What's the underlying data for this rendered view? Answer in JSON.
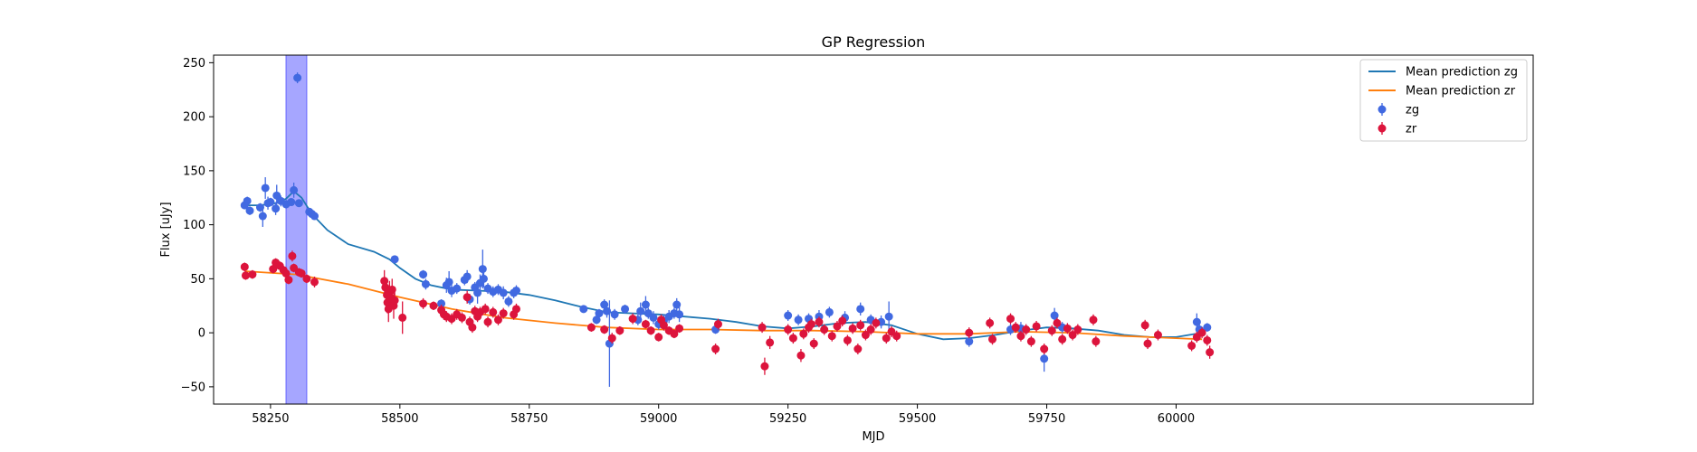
{
  "chart_data": {
    "type": "scatter",
    "title": "GP Regression",
    "xlabel": "MJD",
    "ylabel": "Flux [uJy]",
    "xlim": [
      58140,
      60690
    ],
    "ylim": [
      -66,
      257
    ],
    "xticks": [
      58250,
      58500,
      58750,
      59000,
      59250,
      59500,
      59750,
      60000
    ],
    "yticks": [
      -50,
      0,
      50,
      100,
      150,
      200,
      250
    ],
    "grid": false,
    "legend_position": "top-right",
    "highlight_span": {
      "x0": 58280,
      "x1": 58320,
      "color": "#a6a6ff"
    },
    "series": [
      {
        "name": "Mean prediction zg",
        "kind": "line",
        "color": "#1f77b4",
        "x": [
          58200,
          58230,
          58260,
          58280,
          58295,
          58310,
          58330,
          58360,
          58400,
          58450,
          58480,
          58500,
          58530,
          58560,
          58600,
          58650,
          58700,
          58750,
          58800,
          58850,
          58900,
          58950,
          59000,
          59050,
          59100,
          59150,
          59200,
          59250,
          59300,
          59350,
          59400,
          59450,
          59500,
          59550,
          59600,
          59650,
          59700,
          59750,
          59800,
          59850,
          59900,
          59950,
          60000,
          60050
        ],
        "y": [
          118,
          118,
          120,
          124,
          131,
          125,
          110,
          95,
          82,
          75,
          68,
          60,
          50,
          44,
          40,
          39,
          38,
          35,
          30,
          24,
          19,
          18,
          17,
          15,
          13,
          10,
          6,
          4,
          6,
          9,
          10,
          7,
          -1,
          -6,
          -5,
          -2,
          2,
          5,
          4,
          2,
          -2,
          -4,
          -4,
          0
        ]
      },
      {
        "name": "Mean prediction zr",
        "kind": "line",
        "color": "#ff7f0e",
        "x": [
          58200,
          58300,
          58400,
          58500,
          58600,
          58700,
          58800,
          58900,
          59000,
          59100,
          59200,
          59300,
          59400,
          59500,
          59600,
          59700,
          59800,
          59900,
          60000,
          60050
        ],
        "y": [
          57,
          54,
          45,
          33,
          22,
          14,
          9,
          5,
          3,
          3,
          2,
          2,
          1,
          -1,
          -1,
          1,
          0,
          -3,
          -5,
          -6
        ]
      },
      {
        "name": "zg",
        "kind": "errorbar",
        "color": "#4169e1",
        "points": [
          [
            58200,
            118,
            3
          ],
          [
            58205,
            122,
            4
          ],
          [
            58210,
            113,
            4
          ],
          [
            58230,
            116,
            4
          ],
          [
            58235,
            108,
            10
          ],
          [
            58240,
            134,
            10
          ],
          [
            58245,
            120,
            6
          ],
          [
            58250,
            121,
            4
          ],
          [
            58260,
            115,
            6
          ],
          [
            58262,
            127,
            10
          ],
          [
            58270,
            122,
            5
          ],
          [
            58280,
            119,
            4
          ],
          [
            58290,
            121,
            3
          ],
          [
            58295,
            132,
            7
          ],
          [
            58302,
            236,
            5
          ],
          [
            58305,
            120,
            3
          ],
          [
            58325,
            112,
            3
          ],
          [
            58330,
            110,
            3
          ],
          [
            58335,
            108,
            3
          ],
          [
            58490,
            68,
            3
          ],
          [
            58545,
            54,
            4
          ],
          [
            58550,
            45,
            5
          ],
          [
            58580,
            27,
            4
          ],
          [
            58590,
            44,
            7
          ],
          [
            58595,
            47,
            10
          ],
          [
            58600,
            39,
            6
          ],
          [
            58610,
            41,
            5
          ],
          [
            58625,
            49,
            5
          ],
          [
            58630,
            52,
            6
          ],
          [
            58635,
            31,
            5
          ],
          [
            58645,
            42,
            5
          ],
          [
            58650,
            37,
            10
          ],
          [
            58655,
            46,
            8
          ],
          [
            58660,
            59,
            18
          ],
          [
            58662,
            50,
            8
          ],
          [
            58670,
            41,
            5
          ],
          [
            58680,
            38,
            5
          ],
          [
            58690,
            40,
            5
          ],
          [
            58700,
            37,
            6
          ],
          [
            58710,
            29,
            5
          ],
          [
            58720,
            37,
            5
          ],
          [
            58725,
            39,
            5
          ],
          [
            58855,
            22,
            3
          ],
          [
            58880,
            12,
            4
          ],
          [
            58885,
            18,
            4
          ],
          [
            58895,
            26,
            5
          ],
          [
            58900,
            20,
            6
          ],
          [
            58905,
            -10,
            40
          ],
          [
            58915,
            17,
            5
          ],
          [
            58935,
            22,
            4
          ],
          [
            58960,
            12,
            5
          ],
          [
            58965,
            20,
            8
          ],
          [
            58975,
            26,
            8
          ],
          [
            58980,
            18,
            5
          ],
          [
            58990,
            14,
            6
          ],
          [
            59000,
            8,
            5
          ],
          [
            59010,
            11,
            6
          ],
          [
            59020,
            15,
            6
          ],
          [
            59030,
            18,
            5
          ],
          [
            59035,
            26,
            6
          ],
          [
            59040,
            17,
            7
          ],
          [
            59110,
            3,
            4
          ],
          [
            59250,
            16,
            5
          ],
          [
            59270,
            12,
            5
          ],
          [
            59290,
            13,
            5
          ],
          [
            59310,
            15,
            6
          ],
          [
            59330,
            19,
            5
          ],
          [
            59360,
            14,
            6
          ],
          [
            59390,
            22,
            6
          ],
          [
            59410,
            12,
            5
          ],
          [
            59430,
            10,
            6
          ],
          [
            59445,
            15,
            14
          ],
          [
            59600,
            -8,
            5
          ],
          [
            59680,
            3,
            5
          ],
          [
            59700,
            4,
            6
          ],
          [
            59745,
            -24,
            12
          ],
          [
            59765,
            16,
            7
          ],
          [
            59780,
            5,
            5
          ],
          [
            60040,
            10,
            8
          ],
          [
            60045,
            3,
            5
          ],
          [
            60060,
            5,
            4
          ]
        ]
      },
      {
        "name": "zr",
        "kind": "errorbar",
        "color": "#dc143c",
        "points": [
          [
            58200,
            61,
            4
          ],
          [
            58202,
            53,
            4
          ],
          [
            58215,
            54,
            4
          ],
          [
            58255,
            59,
            4
          ],
          [
            58260,
            65,
            4
          ],
          [
            58268,
            62,
            4
          ],
          [
            58275,
            58,
            4
          ],
          [
            58280,
            55,
            4
          ],
          [
            58285,
            49,
            4
          ],
          [
            58292,
            71,
            5
          ],
          [
            58295,
            60,
            4
          ],
          [
            58305,
            56,
            4
          ],
          [
            58310,
            55,
            4
          ],
          [
            58320,
            50,
            4
          ],
          [
            58335,
            47,
            5
          ],
          [
            58470,
            48,
            10
          ],
          [
            58472,
            42,
            8
          ],
          [
            58475,
            35,
            8
          ],
          [
            58476,
            28,
            10
          ],
          [
            58478,
            22,
            12
          ],
          [
            58480,
            38,
            10
          ],
          [
            58482,
            32,
            10
          ],
          [
            58485,
            40,
            10
          ],
          [
            58488,
            25,
            12
          ],
          [
            58490,
            30,
            8
          ],
          [
            58505,
            14,
            15
          ],
          [
            58545,
            27,
            5
          ],
          [
            58565,
            25,
            4
          ],
          [
            58580,
            21,
            5
          ],
          [
            58585,
            17,
            5
          ],
          [
            58590,
            15,
            5
          ],
          [
            58600,
            13,
            5
          ],
          [
            58610,
            17,
            5
          ],
          [
            58620,
            14,
            5
          ],
          [
            58630,
            33,
            6
          ],
          [
            58635,
            10,
            5
          ],
          [
            58640,
            5,
            5
          ],
          [
            58645,
            20,
            5
          ],
          [
            58650,
            15,
            5
          ],
          [
            58655,
            19,
            5
          ],
          [
            58665,
            22,
            5
          ],
          [
            58670,
            10,
            5
          ],
          [
            58680,
            19,
            5
          ],
          [
            58690,
            12,
            5
          ],
          [
            58700,
            18,
            5
          ],
          [
            58720,
            17,
            5
          ],
          [
            58725,
            22,
            5
          ],
          [
            58870,
            5,
            4
          ],
          [
            58895,
            3,
            4
          ],
          [
            58910,
            -5,
            5
          ],
          [
            58925,
            2,
            4
          ],
          [
            58950,
            13,
            5
          ],
          [
            58975,
            8,
            4
          ],
          [
            58985,
            2,
            4
          ],
          [
            59000,
            -4,
            4
          ],
          [
            59005,
            12,
            5
          ],
          [
            59010,
            7,
            5
          ],
          [
            59020,
            2,
            4
          ],
          [
            59030,
            -1,
            4
          ],
          [
            59040,
            4,
            4
          ],
          [
            59110,
            -15,
            5
          ],
          [
            59115,
            8,
            5
          ],
          [
            59200,
            5,
            5
          ],
          [
            59205,
            -31,
            8
          ],
          [
            59215,
            -9,
            6
          ],
          [
            59250,
            3,
            5
          ],
          [
            59260,
            -5,
            5
          ],
          [
            59275,
            -21,
            6
          ],
          [
            59280,
            -1,
            5
          ],
          [
            59290,
            5,
            5
          ],
          [
            59295,
            8,
            5
          ],
          [
            59300,
            -10,
            5
          ],
          [
            59310,
            10,
            5
          ],
          [
            59320,
            3,
            5
          ],
          [
            59335,
            -3,
            5
          ],
          [
            59345,
            6,
            5
          ],
          [
            59355,
            11,
            5
          ],
          [
            59365,
            -7,
            5
          ],
          [
            59375,
            4,
            5
          ],
          [
            59385,
            -15,
            5
          ],
          [
            59390,
            7,
            5
          ],
          [
            59400,
            -2,
            5
          ],
          [
            59410,
            3,
            5
          ],
          [
            59420,
            9,
            5
          ],
          [
            59440,
            -5,
            5
          ],
          [
            59450,
            1,
            5
          ],
          [
            59460,
            -3,
            5
          ],
          [
            59600,
            0,
            5
          ],
          [
            59640,
            9,
            5
          ],
          [
            59645,
            -6,
            5
          ],
          [
            59680,
            13,
            5
          ],
          [
            59690,
            5,
            5
          ],
          [
            59700,
            -3,
            5
          ],
          [
            59710,
            3,
            5
          ],
          [
            59720,
            -8,
            5
          ],
          [
            59730,
            6,
            5
          ],
          [
            59745,
            -15,
            5
          ],
          [
            59760,
            2,
            5
          ],
          [
            59770,
            9,
            5
          ],
          [
            59780,
            -6,
            5
          ],
          [
            59790,
            4,
            5
          ],
          [
            59800,
            -2,
            5
          ],
          [
            59810,
            3,
            5
          ],
          [
            59840,
            12,
            5
          ],
          [
            59845,
            -8,
            5
          ],
          [
            59940,
            7,
            5
          ],
          [
            59945,
            -10,
            5
          ],
          [
            59965,
            -2,
            5
          ],
          [
            60030,
            -12,
            5
          ],
          [
            60040,
            -4,
            5
          ],
          [
            60050,
            0,
            5
          ],
          [
            60060,
            -7,
            5
          ],
          [
            60065,
            -18,
            6
          ]
        ]
      }
    ]
  }
}
